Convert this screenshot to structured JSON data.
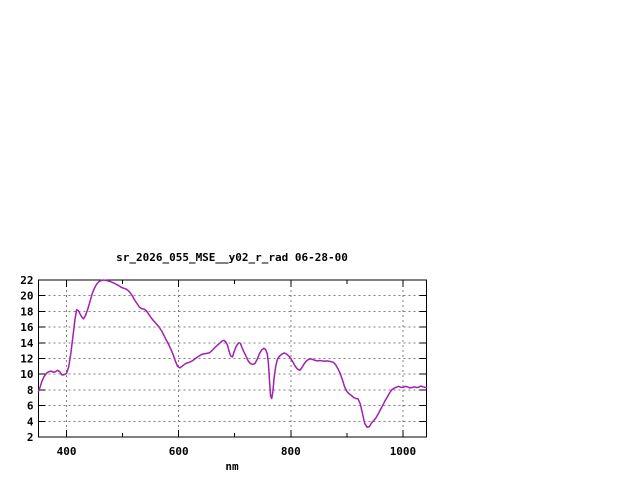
{
  "page": {
    "background": "#ffffff"
  },
  "chart_data": {
    "type": "line",
    "title": "sr_2026_055_MSE__y02_r_rad 06-28-00",
    "xlabel": "nm",
    "ylabel": "",
    "xlim": [
      350,
      1042
    ],
    "ylim": [
      2,
      22
    ],
    "x_major_ticks": [
      400,
      600,
      800,
      1000
    ],
    "x_minor_ticks": [
      500,
      700,
      900
    ],
    "y_major_ticks": [
      2,
      4,
      6,
      8,
      10,
      12,
      14,
      16,
      18,
      20,
      22
    ],
    "grid": "dashed gray on major ticks, mirrored inward tick marks on all borders",
    "legend": "none",
    "colors": {
      "line": "#A020B0",
      "grid": "#808080",
      "border": "#000000",
      "text": "#000000",
      "background": "#ffffff"
    },
    "series": [
      {
        "points": [
          [
            350,
            7.8
          ],
          [
            353,
            8.4
          ],
          [
            356,
            9.1
          ],
          [
            360,
            9.7
          ],
          [
            364,
            10.1
          ],
          [
            368,
            10.3
          ],
          [
            372,
            10.4
          ],
          [
            376,
            10.25
          ],
          [
            380,
            10.3
          ],
          [
            384,
            10.5
          ],
          [
            388,
            10.3
          ],
          [
            392,
            9.9
          ],
          [
            396,
            9.95
          ],
          [
            400,
            10.1
          ],
          [
            404,
            11.0
          ],
          [
            408,
            12.8
          ],
          [
            412,
            15.2
          ],
          [
            415,
            16.9
          ],
          [
            418,
            18.2
          ],
          [
            421,
            18.1
          ],
          [
            424,
            17.7
          ],
          [
            427,
            17.3
          ],
          [
            430,
            17.05
          ],
          [
            434,
            17.5
          ],
          [
            438,
            18.3
          ],
          [
            442,
            19.3
          ],
          [
            446,
            20.3
          ],
          [
            450,
            21.0
          ],
          [
            454,
            21.5
          ],
          [
            458,
            21.8
          ],
          [
            462,
            21.95
          ],
          [
            466,
            22.0
          ],
          [
            470,
            21.95
          ],
          [
            474,
            21.9
          ],
          [
            478,
            21.8
          ],
          [
            482,
            21.7
          ],
          [
            486,
            21.55
          ],
          [
            490,
            21.4
          ],
          [
            494,
            21.25
          ],
          [
            498,
            21.05
          ],
          [
            502,
            20.95
          ],
          [
            506,
            20.85
          ],
          [
            510,
            20.65
          ],
          [
            514,
            20.35
          ],
          [
            518,
            19.9
          ],
          [
            522,
            19.4
          ],
          [
            526,
            18.95
          ],
          [
            530,
            18.55
          ],
          [
            534,
            18.35
          ],
          [
            538,
            18.3
          ],
          [
            542,
            18.1
          ],
          [
            546,
            17.7
          ],
          [
            550,
            17.3
          ],
          [
            554,
            16.9
          ],
          [
            558,
            16.6
          ],
          [
            562,
            16.25
          ],
          [
            566,
            15.9
          ],
          [
            570,
            15.45
          ],
          [
            574,
            14.9
          ],
          [
            578,
            14.35
          ],
          [
            582,
            13.8
          ],
          [
            586,
            13.2
          ],
          [
            590,
            12.5
          ],
          [
            594,
            11.7
          ],
          [
            598,
            11.0
          ],
          [
            602,
            10.8
          ],
          [
            606,
            11.0
          ],
          [
            610,
            11.25
          ],
          [
            614,
            11.4
          ],
          [
            618,
            11.5
          ],
          [
            622,
            11.6
          ],
          [
            626,
            11.8
          ],
          [
            630,
            12.0
          ],
          [
            634,
            12.2
          ],
          [
            638,
            12.4
          ],
          [
            642,
            12.55
          ],
          [
            646,
            12.6
          ],
          [
            650,
            12.65
          ],
          [
            654,
            12.7
          ],
          [
            658,
            12.9
          ],
          [
            662,
            13.2
          ],
          [
            666,
            13.5
          ],
          [
            670,
            13.75
          ],
          [
            674,
            14.0
          ],
          [
            678,
            14.25
          ],
          [
            681,
            14.3
          ],
          [
            684,
            14.1
          ],
          [
            687,
            13.7
          ],
          [
            690,
            12.9
          ],
          [
            693,
            12.3
          ],
          [
            696,
            12.2
          ],
          [
            699,
            12.9
          ],
          [
            703,
            13.6
          ],
          [
            707,
            14.0
          ],
          [
            710,
            13.95
          ],
          [
            713,
            13.4
          ],
          [
            716,
            12.9
          ],
          [
            720,
            12.3
          ],
          [
            724,
            11.7
          ],
          [
            728,
            11.35
          ],
          [
            732,
            11.25
          ],
          [
            736,
            11.35
          ],
          [
            740,
            11.9
          ],
          [
            744,
            12.6
          ],
          [
            748,
            13.1
          ],
          [
            752,
            13.3
          ],
          [
            755,
            13.15
          ],
          [
            758,
            12.6
          ],
          [
            760,
            11.4
          ],
          [
            762,
            9.2
          ],
          [
            764,
            7.2
          ],
          [
            766,
            6.9
          ],
          [
            768,
            7.8
          ],
          [
            770,
            9.4
          ],
          [
            773,
            11.0
          ],
          [
            776,
            11.9
          ],
          [
            780,
            12.3
          ],
          [
            784,
            12.55
          ],
          [
            788,
            12.7
          ],
          [
            792,
            12.6
          ],
          [
            796,
            12.35
          ],
          [
            800,
            12.0
          ],
          [
            804,
            11.5
          ],
          [
            808,
            11.0
          ],
          [
            812,
            10.65
          ],
          [
            816,
            10.5
          ],
          [
            820,
            10.85
          ],
          [
            824,
            11.35
          ],
          [
            828,
            11.7
          ],
          [
            832,
            11.9
          ],
          [
            836,
            11.95
          ],
          [
            840,
            11.85
          ],
          [
            844,
            11.75
          ],
          [
            848,
            11.7
          ],
          [
            852,
            11.75
          ],
          [
            856,
            11.7
          ],
          [
            860,
            11.65
          ],
          [
            864,
            11.7
          ],
          [
            868,
            11.65
          ],
          [
            872,
            11.6
          ],
          [
            876,
            11.5
          ],
          [
            880,
            11.2
          ],
          [
            884,
            10.7
          ],
          [
            888,
            10.1
          ],
          [
            892,
            9.3
          ],
          [
            896,
            8.4
          ],
          [
            900,
            7.8
          ],
          [
            904,
            7.5
          ],
          [
            908,
            7.3
          ],
          [
            912,
            7.05
          ],
          [
            916,
            6.9
          ],
          [
            920,
            6.85
          ],
          [
            924,
            6.2
          ],
          [
            928,
            4.9
          ],
          [
            932,
            3.7
          ],
          [
            936,
            3.25
          ],
          [
            940,
            3.3
          ],
          [
            944,
            3.8
          ],
          [
            948,
            4.1
          ],
          [
            952,
            4.45
          ],
          [
            956,
            4.95
          ],
          [
            960,
            5.5
          ],
          [
            964,
            6.05
          ],
          [
            968,
            6.6
          ],
          [
            972,
            7.1
          ],
          [
            976,
            7.6
          ],
          [
            980,
            8.0
          ],
          [
            984,
            8.2
          ],
          [
            988,
            8.35
          ],
          [
            992,
            8.45
          ],
          [
            996,
            8.35
          ],
          [
            1000,
            8.3
          ],
          [
            1004,
            8.45
          ],
          [
            1008,
            8.4
          ],
          [
            1012,
            8.25
          ],
          [
            1016,
            8.3
          ],
          [
            1020,
            8.4
          ],
          [
            1024,
            8.3
          ],
          [
            1028,
            8.35
          ],
          [
            1032,
            8.5
          ],
          [
            1036,
            8.4
          ],
          [
            1040,
            8.3
          ],
          [
            1042,
            8.3
          ]
        ]
      }
    ]
  }
}
